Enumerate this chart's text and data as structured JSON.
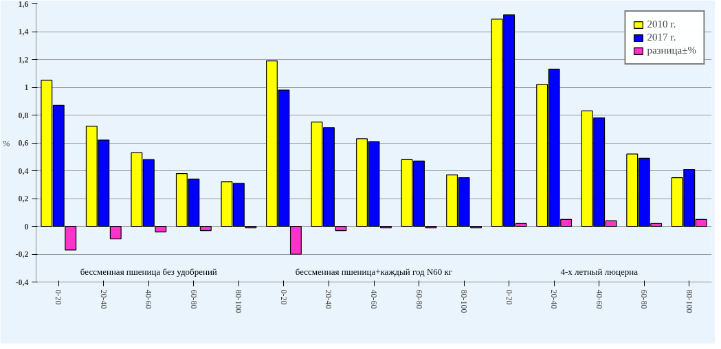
{
  "chart_data": {
    "type": "bar",
    "ylabel": "%",
    "categories": [
      "0-20",
      "20-40",
      "40-60",
      "60-80",
      "80-100",
      "0-20",
      "20-40",
      "40-60",
      "60-80",
      "80-100",
      "0-20",
      "20-40",
      "40-60",
      "60-80",
      "80-100"
    ],
    "annotations": [
      "бессменная пшеница без удобрений",
      "бессменная пшеница+каждый год N60 кг",
      "4-х летный люцерна"
    ],
    "series": [
      {
        "name": "2010 г.",
        "color": "#ffff00",
        "values": [
          1.05,
          0.72,
          0.53,
          0.38,
          0.32,
          1.19,
          0.75,
          0.63,
          0.48,
          0.37,
          1.49,
          1.02,
          0.83,
          0.52,
          0.35
        ]
      },
      {
        "name": "2017 г.",
        "color": "#0000ff",
        "values": [
          0.87,
          0.62,
          0.48,
          0.34,
          0.31,
          0.98,
          0.71,
          0.61,
          0.47,
          0.35,
          1.52,
          1.13,
          0.78,
          0.49,
          0.41
        ]
      },
      {
        "name": "разница±%",
        "color": "#ff33cc",
        "values": [
          -0.17,
          -0.09,
          -0.04,
          -0.03,
          -0.01,
          -0.2,
          -0.03,
          -0.01,
          -0.01,
          -0.01,
          0.02,
          0.05,
          0.04,
          0.02,
          0.05
        ]
      }
    ],
    "ylim": [
      -0.4,
      1.6
    ],
    "yticks": [
      {
        "value": -0.4,
        "label": "-0,4"
      },
      {
        "value": -0.2,
        "label": "-0,2"
      },
      0,
      {
        "value": 0.2,
        "label": "0,2"
      },
      {
        "value": 0.4,
        "label": "0,4"
      },
      {
        "value": 0.6,
        "label": "0,6"
      },
      {
        "value": 0.8,
        "label": "0,8"
      },
      1,
      {
        "value": 1.2,
        "label": "1,2"
      },
      {
        "value": 1.4,
        "label": "1,4"
      },
      {
        "value": 1.6,
        "label": "1,6"
      }
    ],
    "grid": "y",
    "legend": "top right"
  }
}
